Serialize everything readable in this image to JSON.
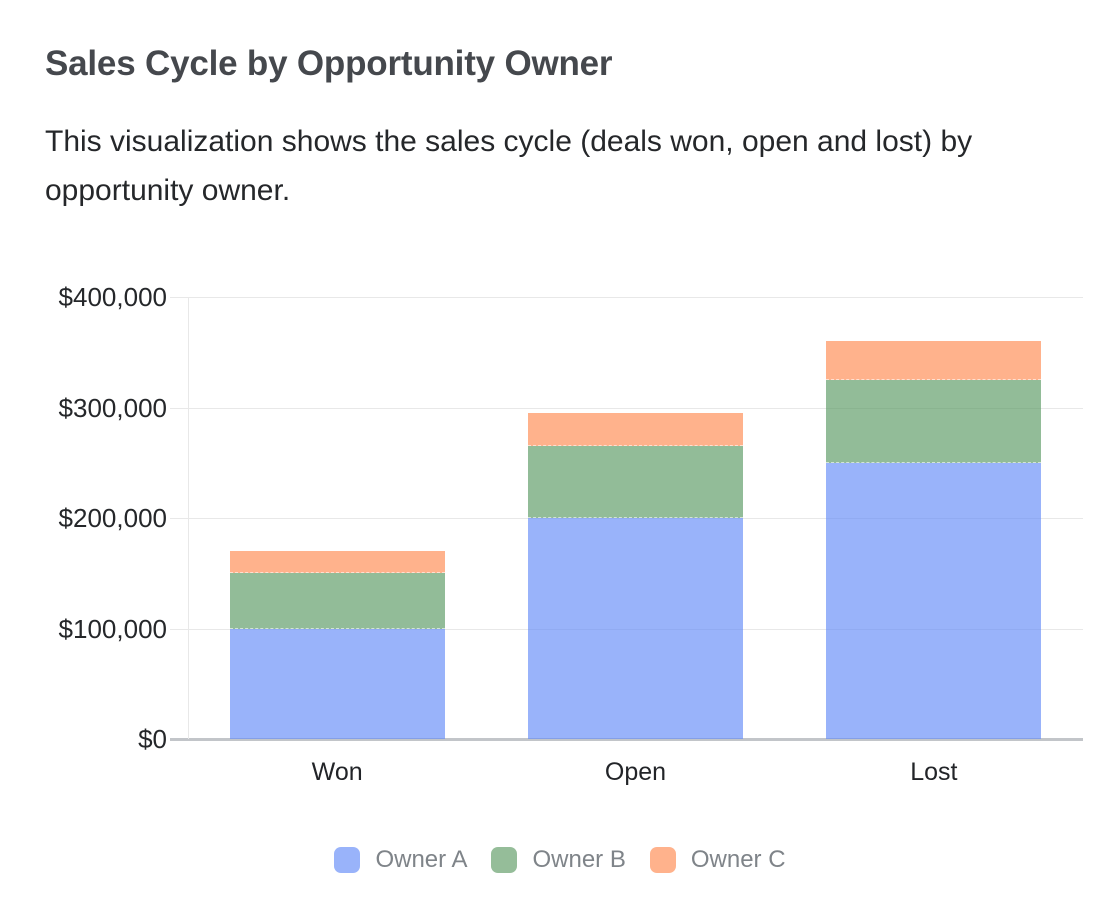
{
  "header": {
    "title": "Sales Cycle by Opportunity Owner",
    "description": "This visualization shows the sales cycle (deals won, open and lost) by opportunity owner."
  },
  "chart_data": {
    "type": "bar",
    "stacked": true,
    "title": "Sales Cycle by Opportunity Owner",
    "categories": [
      "Won",
      "Open",
      "Lost"
    ],
    "series": [
      {
        "name": "Owner A",
        "values": [
          100000,
          200000,
          250000
        ],
        "color": "#99B3FA",
        "fill": "rgba(98,138,247,0.65)"
      },
      {
        "name": "Owner B",
        "values": [
          50000,
          65000,
          75000
        ],
        "color": "#95BD99",
        "fill": "rgba(87,152,97,0.65)"
      },
      {
        "name": "Owner C",
        "values": [
          20000,
          30000,
          35000
        ],
        "color": "#FFB28C",
        "fill": "rgba(255,137,78,0.65)"
      }
    ],
    "xlabel": "",
    "ylabel": "",
    "y_axis": {
      "min": 0,
      "max": 400000,
      "tick_interval": 100000,
      "tick_labels": [
        "$0",
        "$100,000",
        "$200,000",
        "$300,000",
        "$400,000"
      ]
    },
    "ylim": [
      0,
      400000
    ],
    "grid": true,
    "legend_position": "bottom",
    "colors": {
      "gridline": "#E8E8E8",
      "baseline": "#C2C5C9",
      "axis_text": "#25272A",
      "category_text": "#222428",
      "legend_text": "#7F8489",
      "title_text": "#45484D"
    }
  }
}
